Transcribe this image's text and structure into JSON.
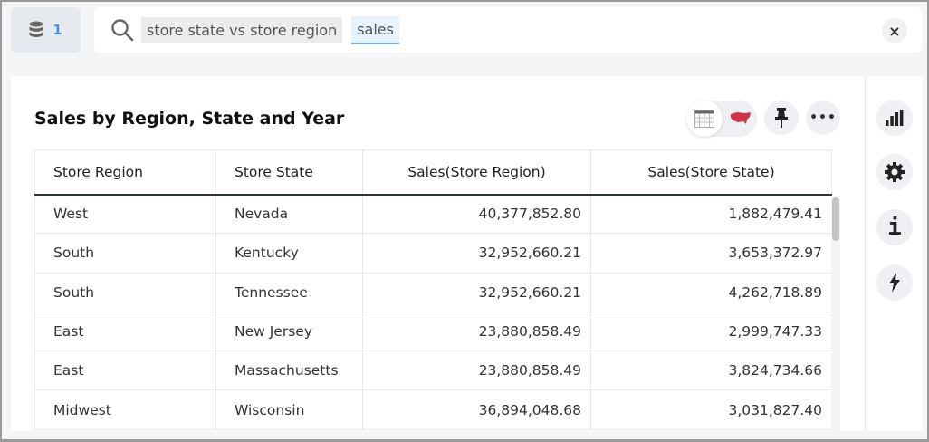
{
  "source_button": {
    "icon": "database-icon",
    "count": "1"
  },
  "search": {
    "tokens": [
      "store state vs store region",
      "sales"
    ],
    "close": "×"
  },
  "answer": {
    "title": "Sales by Region, State and Year",
    "toggle": [
      "table-icon",
      "map-icon"
    ],
    "pin": "pin-icon",
    "more": "•••"
  },
  "table": {
    "columns": [
      "Store Region",
      "Store State",
      "Sales(Store Region)",
      "Sales(Store State)"
    ],
    "rows": [
      [
        "West",
        "Nevada",
        "40,377,852.80",
        "1,882,479.41"
      ],
      [
        "South",
        "Kentucky",
        "32,952,660.21",
        "3,653,372.97"
      ],
      [
        "South",
        "Tennessee",
        "32,952,660.21",
        "4,262,718.89"
      ],
      [
        "East",
        "New Jersey",
        "23,880,858.49",
        "2,999,747.33"
      ],
      [
        "East",
        "Massachusetts",
        "23,880,858.49",
        "3,824,734.66"
      ],
      [
        "Midwest",
        "Wisconsin",
        "36,894,048.68",
        "3,031,827.40"
      ]
    ]
  },
  "sidebar": {
    "items": [
      "chart-icon",
      "gear-icon",
      "info-icon",
      "lightning-icon"
    ],
    "info_glyph": "i"
  },
  "colors": {
    "accent": "#4a90e2",
    "map": "#d0344a"
  }
}
